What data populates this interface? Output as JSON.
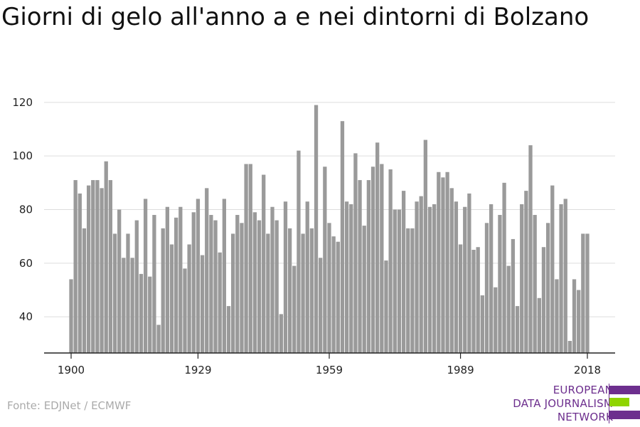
{
  "title": "Giorni di gelo all'anno a e nei dintorni di Bolzano",
  "source": "Fonte: EDJNet / ECMWF",
  "logo": {
    "line1": "EUROPEAN",
    "line2": "DATA JOURNALISM",
    "line3": "NETWORK",
    "colors": [
      "#6d2f8e",
      "#8fd400",
      "#6d2f8e"
    ]
  },
  "colors": {
    "bar": "#9a9a9a",
    "grid": "#dddddd",
    "axis": "#222222",
    "text": "#222222"
  },
  "chart_data": {
    "type": "bar",
    "x": [
      1900,
      1901,
      1902,
      1903,
      1904,
      1905,
      1906,
      1907,
      1908,
      1909,
      1910,
      1911,
      1912,
      1913,
      1914,
      1915,
      1916,
      1917,
      1918,
      1919,
      1920,
      1921,
      1922,
      1923,
      1924,
      1925,
      1926,
      1927,
      1928,
      1929,
      1930,
      1931,
      1932,
      1933,
      1934,
      1935,
      1936,
      1937,
      1938,
      1939,
      1940,
      1941,
      1942,
      1943,
      1944,
      1945,
      1946,
      1947,
      1948,
      1949,
      1950,
      1951,
      1952,
      1953,
      1954,
      1955,
      1956,
      1957,
      1958,
      1959,
      1960,
      1961,
      1962,
      1963,
      1964,
      1965,
      1966,
      1967,
      1968,
      1969,
      1970,
      1971,
      1972,
      1973,
      1974,
      1975,
      1976,
      1977,
      1978,
      1979,
      1980,
      1981,
      1982,
      1983,
      1984,
      1985,
      1986,
      1987,
      1988,
      1989,
      1990,
      1991,
      1992,
      1993,
      1994,
      1995,
      1996,
      1997,
      1998,
      1999,
      2000,
      2001,
      2002,
      2003,
      2004,
      2005,
      2006,
      2007,
      2008,
      2009,
      2010,
      2011,
      2012,
      2013,
      2014,
      2015,
      2016,
      2017,
      2018
    ],
    "values": [
      54,
      91,
      86,
      73,
      89,
      91,
      91,
      88,
      98,
      91,
      71,
      80,
      62,
      71,
      62,
      76,
      56,
      84,
      55,
      78,
      37,
      73,
      81,
      67,
      77,
      81,
      58,
      67,
      79,
      84,
      63,
      88,
      78,
      76,
      64,
      84,
      44,
      71,
      78,
      75,
      97,
      97,
      79,
      76,
      93,
      71,
      81,
      76,
      41,
      83,
      73,
      59,
      102,
      71,
      83,
      73,
      119,
      62,
      96,
      75,
      70,
      68,
      113,
      83,
      82,
      101,
      91,
      74,
      91,
      96,
      105,
      97,
      61,
      95,
      80,
      80,
      87,
      73,
      73,
      83,
      85,
      106,
      81,
      82,
      94,
      92,
      94,
      88,
      83,
      67,
      81,
      86,
      65,
      66,
      48,
      75,
      82,
      51,
      78,
      90,
      59,
      69,
      44,
      82,
      87,
      104,
      78,
      47,
      66,
      75,
      89,
      54,
      82,
      84,
      31,
      54,
      50,
      71,
      71
    ],
    "x_ticks": [
      "1900",
      "1929",
      "1959",
      "1989",
      "2018"
    ],
    "x_tick_years": [
      1900,
      1929,
      1959,
      1989,
      2018
    ],
    "y_ticks": [
      "40",
      "60",
      "80",
      "100",
      "120"
    ],
    "y_tick_values": [
      40,
      60,
      80,
      100,
      120
    ],
    "ylim": [
      26.5,
      125
    ],
    "xlabel": "",
    "ylabel": "",
    "grid": true,
    "legend": "none"
  }
}
